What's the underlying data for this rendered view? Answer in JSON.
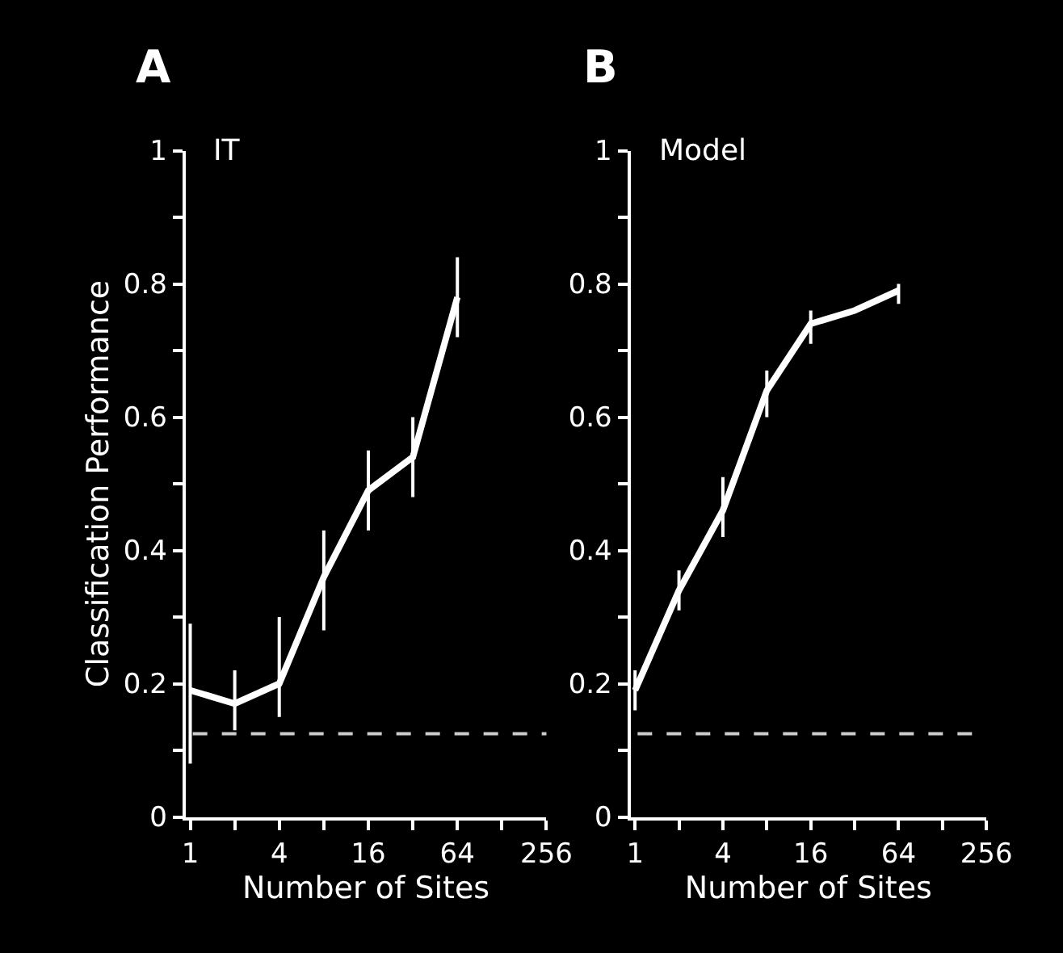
{
  "chart_data": [
    {
      "type": "line",
      "title": "A",
      "xlabel": "Number of Sites",
      "ylabel": "Classification Performance",
      "x": [
        1,
        2,
        4,
        8,
        16,
        32,
        64
      ],
      "log": "x",
      "grid": false,
      "legend": false,
      "marker": "none",
      "line_style": "solid",
      "xlim": [
        0.93,
        256
      ],
      "xticks": [
        1,
        {
          "value": 2,
          "label": null
        },
        4,
        {
          "value": 8,
          "label": null
        },
        16,
        {
          "value": 32,
          "label": null
        },
        64,
        {
          "value": 128,
          "label": null
        },
        256
      ],
      "ylim": [
        0,
        1
      ],
      "yticks": [
        0,
        {
          "value": 0.1,
          "label": null
        },
        0.2,
        {
          "value": 0.3,
          "label": null
        },
        0.4,
        {
          "value": 0.5,
          "label": null
        },
        0.6,
        {
          "value": 0.7,
          "label": null
        },
        0.8,
        {
          "value": 0.9,
          "label": null
        },
        1
      ],
      "series": [
        {
          "name": "IT",
          "color": "#ffffff",
          "values": [
            0.19,
            0.17,
            0.2,
            0.36,
            0.49,
            0.54,
            0.78
          ],
          "errors": [
            [
              0.08,
              0.29
            ],
            [
              0.13,
              0.22
            ],
            [
              0.15,
              0.3
            ],
            [
              0.28,
              0.43
            ],
            [
              0.43,
              0.55
            ],
            [
              0.48,
              0.6
            ],
            [
              0.72,
              0.84
            ]
          ]
        }
      ],
      "ref_lines": [
        {
          "axis": "y",
          "value": 0.125,
          "color": "#cccccc",
          "line_style": "dashed"
        }
      ]
    },
    {
      "type": "line",
      "title": "B",
      "xlabel": "Number of Sites",
      "x": [
        1,
        2,
        4,
        8,
        16,
        32,
        64
      ],
      "log": "x",
      "grid": false,
      "legend": false,
      "marker": "none",
      "line_style": "solid",
      "xlim": [
        0.93,
        256
      ],
      "xticks": [
        1,
        {
          "value": 2,
          "label": null
        },
        4,
        {
          "value": 8,
          "label": null
        },
        16,
        {
          "value": 32,
          "label": null
        },
        64,
        {
          "value": 128,
          "label": null
        },
        256
      ],
      "ylim": [
        0,
        1
      ],
      "yticks": [
        0,
        {
          "value": 0.1,
          "label": null
        },
        0.2,
        {
          "value": 0.3,
          "label": null
        },
        0.4,
        {
          "value": 0.5,
          "label": null
        },
        0.6,
        {
          "value": 0.7,
          "label": null
        },
        0.8,
        {
          "value": 0.9,
          "label": null
        },
        1
      ],
      "series": [
        {
          "name": "Model",
          "color": "#ffffff",
          "values": [
            0.19,
            0.34,
            0.46,
            0.64,
            0.74,
            0.76,
            0.79
          ],
          "errors": [
            [
              0.16,
              0.22
            ],
            [
              0.31,
              0.37
            ],
            [
              0.42,
              0.51
            ],
            [
              0.6,
              0.67
            ],
            [
              0.71,
              0.76
            ],
            null,
            [
              0.77,
              0.8
            ]
          ]
        }
      ],
      "ref_lines": [
        {
          "axis": "y",
          "value": 0.125,
          "color": "#cccccc",
          "line_style": "dashed"
        }
      ]
    }
  ]
}
